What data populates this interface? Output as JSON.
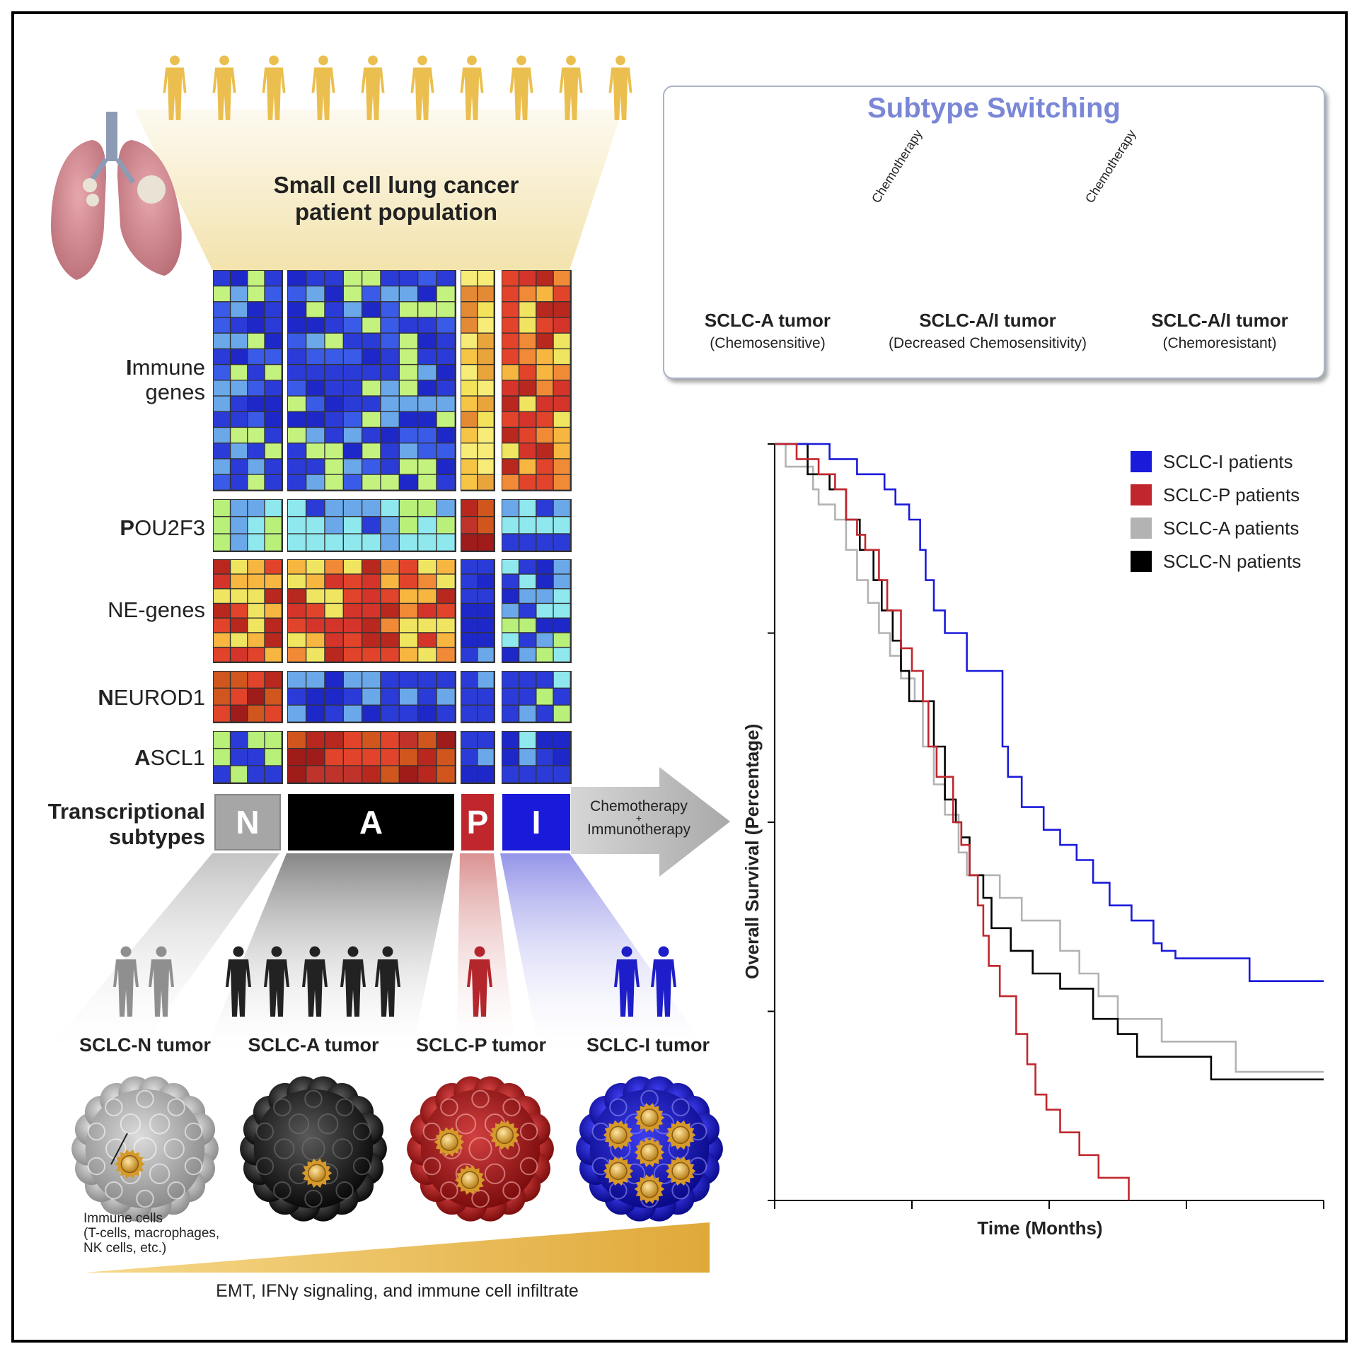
{
  "header": {
    "population_line1": "Small cell lung cancer",
    "population_line2": "patient population"
  },
  "heatmap": {
    "rows": [
      {
        "initial": "I",
        "rest": "mmune",
        "line2": "genes"
      },
      {
        "initial": "P",
        "rest": "OU2F3"
      },
      {
        "initial": "",
        "rest": "NE-genes"
      },
      {
        "initial": "N",
        "rest": "EUROD1"
      },
      {
        "initial": "A",
        "rest": "SCL1"
      }
    ],
    "subtypes_label_line1": "Transcriptional",
    "subtypes_label_line2": "subtypes",
    "subtypes": [
      {
        "letter": "N",
        "color": "#a6a6a6"
      },
      {
        "letter": "A",
        "color": "#000000"
      },
      {
        "letter": "P",
        "color": "#c0272d"
      },
      {
        "letter": "I",
        "color": "#1a1adb"
      }
    ]
  },
  "treatment_arrow": {
    "line1": "Chemotherapy",
    "line2": "+",
    "line3": "Immunotherapy"
  },
  "tumors": [
    {
      "label": "SCLC-N tumor"
    },
    {
      "label": "SCLC-A tumor"
    },
    {
      "label": "SCLC-P tumor"
    },
    {
      "label": "SCLC-I tumor"
    }
  ],
  "immune_note": {
    "line1": "Immune cells",
    "line2": "(T-cells, macrophages,",
    "line3": "NK cells, etc.)"
  },
  "gradient_caption": "EMT, IFNγ signaling, and immune  cell infiltrate",
  "switching": {
    "title": "Subtype Switching",
    "arrow_label": "Chemotherapy",
    "stages": [
      {
        "name": "SCLC-A tumor",
        "note": "(Chemosensitive)"
      },
      {
        "name": "SCLC-A/I tumor",
        "note": "(Decreased Chemosensitivity)"
      },
      {
        "name": "SCLC-A/I tumor",
        "note": "(Chemoresistant)"
      }
    ]
  },
  "chart_data": {
    "type": "line",
    "title": "",
    "xlabel": "Time (Months)",
    "ylabel": "Overall Survival (Percentage)",
    "xlim": [
      0,
      20
    ],
    "ylim": [
      0,
      100
    ],
    "x_ticks": 5,
    "y_ticks": 5,
    "legend_position": "top-right",
    "series": [
      {
        "name": "SCLC-I patients",
        "color": "#1a1adb",
        "points": [
          [
            0,
            100
          ],
          [
            2,
            100
          ],
          [
            2,
            98
          ],
          [
            3,
            98
          ],
          [
            3,
            96
          ],
          [
            4,
            96
          ],
          [
            4,
            94
          ],
          [
            4.4,
            94
          ],
          [
            4.4,
            92
          ],
          [
            4.9,
            92
          ],
          [
            4.9,
            90
          ],
          [
            5.3,
            90
          ],
          [
            5.3,
            86
          ],
          [
            5.5,
            86
          ],
          [
            5.5,
            82
          ],
          [
            5.8,
            82
          ],
          [
            5.8,
            78
          ],
          [
            6.2,
            78
          ],
          [
            6.2,
            75
          ],
          [
            7,
            75
          ],
          [
            7,
            70
          ],
          [
            8.3,
            70
          ],
          [
            8.3,
            60
          ],
          [
            8.5,
            60
          ],
          [
            8.5,
            56
          ],
          [
            9,
            56
          ],
          [
            9,
            52
          ],
          [
            9.8,
            52
          ],
          [
            9.8,
            49
          ],
          [
            10.4,
            49
          ],
          [
            10.4,
            47
          ],
          [
            11,
            47
          ],
          [
            11,
            45
          ],
          [
            11.6,
            45
          ],
          [
            11.6,
            42
          ],
          [
            12.2,
            42
          ],
          [
            12.2,
            39
          ],
          [
            13.0,
            39
          ],
          [
            13.0,
            37
          ],
          [
            13.8,
            37
          ],
          [
            13.8,
            34
          ],
          [
            14.1,
            34
          ],
          [
            14.1,
            33
          ],
          [
            14.6,
            33
          ],
          [
            14.6,
            32
          ],
          [
            17.3,
            32
          ],
          [
            17.3,
            29
          ],
          [
            20,
            29
          ]
        ]
      },
      {
        "name": "SCLC-P patients",
        "color": "#c0272d",
        "points": [
          [
            0,
            100
          ],
          [
            0.8,
            100
          ],
          [
            0.8,
            98
          ],
          [
            1.6,
            98
          ],
          [
            1.6,
            96
          ],
          [
            2.2,
            96
          ],
          [
            2.2,
            94
          ],
          [
            2.6,
            94
          ],
          [
            2.6,
            90
          ],
          [
            3.0,
            90
          ],
          [
            3.0,
            88
          ],
          [
            3.3,
            88
          ],
          [
            3.3,
            86
          ],
          [
            3.8,
            86
          ],
          [
            3.8,
            82
          ],
          [
            4.1,
            82
          ],
          [
            4.1,
            78
          ],
          [
            4.6,
            78
          ],
          [
            4.6,
            73
          ],
          [
            5.0,
            73
          ],
          [
            5.0,
            70
          ],
          [
            5.4,
            70
          ],
          [
            5.4,
            66
          ],
          [
            5.6,
            66
          ],
          [
            5.6,
            60
          ],
          [
            5.9,
            60
          ],
          [
            5.9,
            56
          ],
          [
            6.5,
            56
          ],
          [
            6.5,
            50
          ],
          [
            6.8,
            50
          ],
          [
            6.8,
            47
          ],
          [
            7.1,
            47
          ],
          [
            7.1,
            43
          ],
          [
            7.4,
            43
          ],
          [
            7.4,
            39
          ],
          [
            7.6,
            39
          ],
          [
            7.6,
            35
          ],
          [
            7.8,
            35
          ],
          [
            7.8,
            31
          ],
          [
            8.2,
            31
          ],
          [
            8.2,
            27
          ],
          [
            8.8,
            27
          ],
          [
            8.8,
            22
          ],
          [
            9.2,
            22
          ],
          [
            9.2,
            18
          ],
          [
            9.5,
            18
          ],
          [
            9.5,
            14
          ],
          [
            9.9,
            14
          ],
          [
            9.9,
            12
          ],
          [
            10.4,
            12
          ],
          [
            10.4,
            9
          ],
          [
            11.1,
            9
          ],
          [
            11.1,
            6
          ],
          [
            11.8,
            6
          ],
          [
            11.8,
            3
          ],
          [
            12.9,
            3
          ],
          [
            12.9,
            0
          ]
        ]
      },
      {
        "name": "SCLC-A patients",
        "color": "#b3b3b3",
        "points": [
          [
            0,
            100
          ],
          [
            0.4,
            100
          ],
          [
            0.4,
            97
          ],
          [
            1.4,
            97
          ],
          [
            1.4,
            94
          ],
          [
            1.6,
            94
          ],
          [
            1.6,
            92
          ],
          [
            2.2,
            92
          ],
          [
            2.2,
            90
          ],
          [
            2.6,
            90
          ],
          [
            2.6,
            86
          ],
          [
            3.0,
            86
          ],
          [
            3.0,
            82
          ],
          [
            3.4,
            82
          ],
          [
            3.4,
            79
          ],
          [
            3.8,
            79
          ],
          [
            3.8,
            75
          ],
          [
            4.2,
            75
          ],
          [
            4.2,
            72
          ],
          [
            4.6,
            72
          ],
          [
            4.6,
            69
          ],
          [
            5.1,
            69
          ],
          [
            5.1,
            66
          ],
          [
            5.4,
            66
          ],
          [
            5.4,
            60
          ],
          [
            5.8,
            60
          ],
          [
            5.8,
            55
          ],
          [
            6.2,
            55
          ],
          [
            6.2,
            51
          ],
          [
            6.7,
            51
          ],
          [
            6.7,
            46
          ],
          [
            7.0,
            46
          ],
          [
            7.0,
            43
          ],
          [
            8.2,
            43
          ],
          [
            8.2,
            40
          ],
          [
            9.0,
            40
          ],
          [
            9.0,
            37
          ],
          [
            10.4,
            37
          ],
          [
            10.4,
            33
          ],
          [
            11.1,
            33
          ],
          [
            11.1,
            30
          ],
          [
            11.8,
            30
          ],
          [
            11.8,
            27
          ],
          [
            12.5,
            27
          ],
          [
            12.5,
            24
          ],
          [
            14.1,
            24
          ],
          [
            14.1,
            21
          ],
          [
            16.8,
            21
          ],
          [
            16.8,
            17
          ],
          [
            20,
            17
          ]
        ]
      },
      {
        "name": "SCLC-N patients",
        "color": "#000000",
        "points": [
          [
            0,
            100
          ],
          [
            1.2,
            100
          ],
          [
            1.2,
            96
          ],
          [
            2.0,
            96
          ],
          [
            2.0,
            94
          ],
          [
            2.6,
            94
          ],
          [
            2.6,
            90
          ],
          [
            3.1,
            90
          ],
          [
            3.1,
            86
          ],
          [
            3.6,
            86
          ],
          [
            3.6,
            82
          ],
          [
            3.9,
            82
          ],
          [
            3.9,
            78
          ],
          [
            4.3,
            78
          ],
          [
            4.3,
            74
          ],
          [
            4.6,
            74
          ],
          [
            4.6,
            70
          ],
          [
            4.9,
            70
          ],
          [
            4.9,
            66
          ],
          [
            5.8,
            66
          ],
          [
            5.8,
            60
          ],
          [
            6.2,
            60
          ],
          [
            6.2,
            53
          ],
          [
            6.6,
            53
          ],
          [
            6.6,
            50
          ],
          [
            6.8,
            50
          ],
          [
            6.8,
            48
          ],
          [
            7.1,
            48
          ],
          [
            7.1,
            43
          ],
          [
            7.6,
            43
          ],
          [
            7.6,
            40
          ],
          [
            7.9,
            40
          ],
          [
            7.9,
            36
          ],
          [
            8.6,
            36
          ],
          [
            8.6,
            33
          ],
          [
            9.4,
            33
          ],
          [
            9.4,
            30
          ],
          [
            10.4,
            30
          ],
          [
            10.4,
            28
          ],
          [
            11.6,
            28
          ],
          [
            11.6,
            24
          ],
          [
            12.5,
            24
          ],
          [
            12.5,
            22
          ],
          [
            13.2,
            22
          ],
          [
            13.2,
            19
          ],
          [
            15.9,
            19
          ],
          [
            15.9,
            16
          ],
          [
            20,
            16
          ]
        ]
      }
    ]
  }
}
